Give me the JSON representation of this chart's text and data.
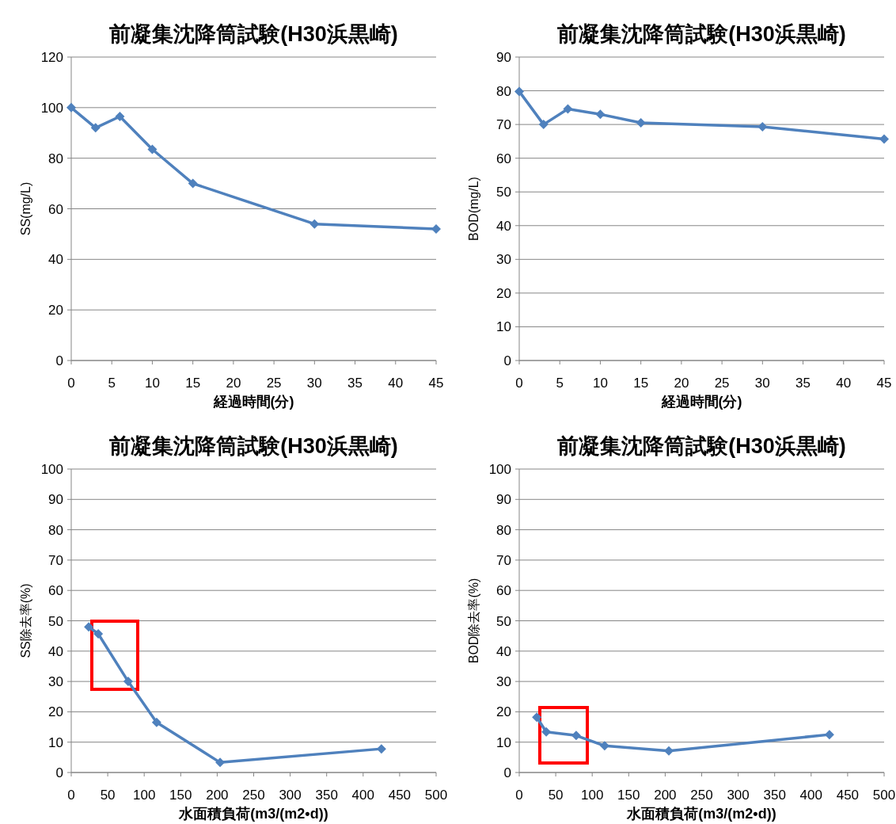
{
  "chart_data": [
    {
      "type": "line",
      "title": "前凝集沈降筒試験(H30浜黒崎)",
      "xlabel": "経過時間(分)",
      "ylabel": "SS(mg/L)",
      "x": [
        0,
        3,
        6,
        10,
        15,
        30,
        45
      ],
      "series": [
        {
          "color": "#4f81bd",
          "values": [
            100,
            92,
            96.5,
            83.5,
            70,
            54,
            52
          ]
        }
      ],
      "xlim": [
        0,
        45
      ],
      "xticks": [
        0,
        5,
        10,
        15,
        20,
        25,
        30,
        35,
        40,
        45
      ],
      "ylim": [
        0,
        120
      ],
      "yticks": [
        0,
        20,
        40,
        60,
        80,
        100,
        120
      ],
      "grid": "y",
      "marker": "diamond",
      "line_style": "solid"
    },
    {
      "type": "line",
      "title": "前凝集沈降筒試験(H30浜黒崎)",
      "xlabel": "経過時間(分)",
      "ylabel": "BOD(mg/L)",
      "x": [
        0,
        3,
        6,
        10,
        15,
        30,
        45
      ],
      "series": [
        {
          "color": "#4f81bd",
          "values": [
            79.8,
            70,
            74.6,
            73,
            70.5,
            69.3,
            65.7
          ]
        }
      ],
      "xlim": [
        0,
        45
      ],
      "xticks": [
        0,
        5,
        10,
        15,
        20,
        25,
        30,
        35,
        40,
        45
      ],
      "ylim": [
        0,
        90
      ],
      "yticks": [
        0,
        10,
        20,
        30,
        40,
        50,
        60,
        70,
        80,
        90
      ],
      "grid": "y",
      "marker": "diamond",
      "line_style": "solid"
    },
    {
      "type": "line",
      "title": "前凝集沈降筒試験(H30浜黒崎)",
      "xlabel": "水面積負荷(m3/(m2•d))",
      "ylabel": "SS除去率(%)",
      "x": [
        24,
        37,
        78,
        117,
        204,
        425
      ],
      "series": [
        {
          "color": "#4f81bd",
          "values": [
            48,
            45.7,
            30,
            16.5,
            3.3,
            7.8
          ]
        }
      ],
      "xlim": [
        0,
        500
      ],
      "xticks": [
        0,
        50,
        100,
        150,
        200,
        250,
        300,
        350,
        400,
        450,
        500
      ],
      "ylim": [
        0,
        100
      ],
      "yticks": [
        0,
        10,
        20,
        30,
        40,
        50,
        60,
        70,
        80,
        90,
        100
      ],
      "grid": "y",
      "marker": "diamond",
      "line_style": "solid"
    },
    {
      "type": "line",
      "title": "前凝集沈降筒試験(H30浜黒崎)",
      "xlabel": "水面積負荷(m3/(m2•d))",
      "ylabel": "BOD除去率(%)",
      "x": [
        24,
        37,
        78,
        117,
        205,
        425
      ],
      "series": [
        {
          "color": "#4f81bd",
          "values": [
            18.2,
            13.4,
            12.2,
            8.8,
            7.1,
            12.5
          ]
        }
      ],
      "xlim": [
        0,
        500
      ],
      "xticks": [
        0,
        50,
        100,
        150,
        200,
        250,
        300,
        350,
        400,
        450,
        500
      ],
      "ylim": [
        0,
        100
      ],
      "yticks": [
        0,
        10,
        20,
        30,
        40,
        50,
        60,
        70,
        80,
        90,
        100
      ],
      "grid": "y",
      "marker": "diamond",
      "line_style": "solid"
    }
  ]
}
